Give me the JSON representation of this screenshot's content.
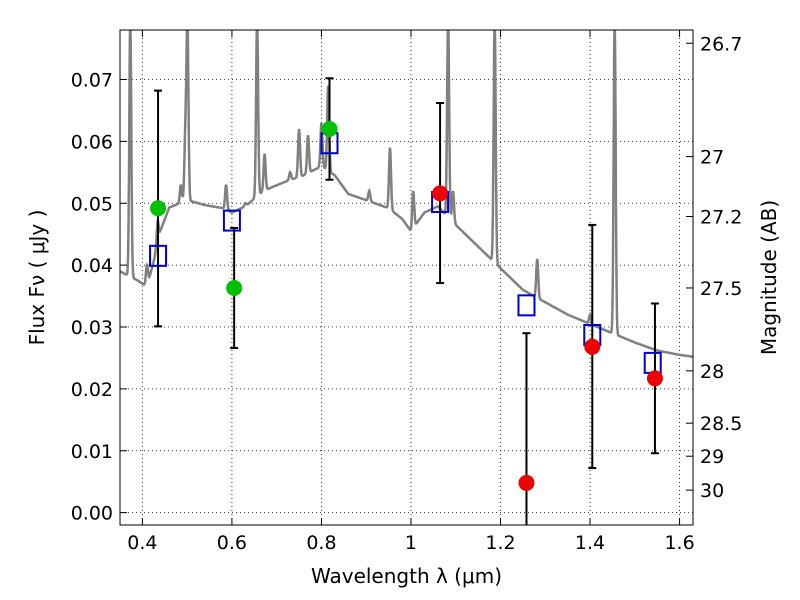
{
  "chart_data": {
    "type": "scatter",
    "xlabel": "Wavelength  λ (μm)",
    "ylabel": "Flux  Fν  ( μJy )",
    "y2label": "Magnitude (AB)",
    "xlim": [
      0.35,
      1.63
    ],
    "ylim": [
      -0.002,
      0.078
    ],
    "grid": true,
    "grid_style": "dotted",
    "x_ticks": [
      0.4,
      0.6,
      0.8,
      1.0,
      1.2,
      1.4,
      1.6
    ],
    "x_tick_labels": [
      "0.4",
      "0.6",
      "0.8",
      "1",
      "1.2",
      "1.4",
      "1.6"
    ],
    "y_ticks": [
      0.0,
      0.01,
      0.02,
      0.03,
      0.04,
      0.05,
      0.06,
      0.07
    ],
    "y_tick_labels": [
      "0.00",
      "0.01",
      "0.02",
      "0.03",
      "0.04",
      "0.05",
      "0.06",
      "0.07"
    ],
    "mag_ticks": [
      "26.7",
      "27",
      "27.2",
      "27.5",
      "28",
      "28.5",
      "29",
      "30"
    ],
    "colors": {
      "spectrum": "#808080",
      "model": "#0000cc",
      "green": "#00c000",
      "red": "#ee0000",
      "errorbar": "#000000"
    },
    "spectrum": {
      "name": "",
      "continuum": [
        [
          0.35,
          0.039
        ],
        [
          0.39,
          0.0375
        ],
        [
          0.41,
          0.0365
        ],
        [
          0.425,
          0.0405
        ],
        [
          0.44,
          0.0455
        ],
        [
          0.46,
          0.0493
        ],
        [
          0.5,
          0.0505
        ],
        [
          0.54,
          0.0497
        ],
        [
          0.58,
          0.0492
        ],
        [
          0.6,
          0.0485
        ],
        [
          0.63,
          0.0495
        ],
        [
          0.67,
          0.052
        ],
        [
          0.72,
          0.0535
        ],
        [
          0.76,
          0.0545
        ],
        [
          0.8,
          0.056
        ],
        [
          0.83,
          0.0545
        ],
        [
          0.86,
          0.0515
        ],
        [
          0.9,
          0.0505
        ],
        [
          0.95,
          0.0492
        ],
        [
          0.98,
          0.0475
        ],
        [
          1.0,
          0.0455
        ],
        [
          1.03,
          0.0485
        ],
        [
          1.06,
          0.0495
        ],
        [
          1.1,
          0.0465
        ],
        [
          1.15,
          0.043
        ],
        [
          1.2,
          0.0395
        ],
        [
          1.25,
          0.036
        ],
        [
          1.3,
          0.034
        ],
        [
          1.35,
          0.032
        ],
        [
          1.4,
          0.0305
        ],
        [
          1.45,
          0.029
        ],
        [
          1.5,
          0.0275
        ],
        [
          1.55,
          0.0262
        ],
        [
          1.6,
          0.0255
        ],
        [
          1.63,
          0.0252
        ]
      ],
      "emission_lines": [
        [
          0.373,
          0.08
        ],
        [
          0.41,
          0.04
        ],
        [
          0.434,
          0.047
        ],
        [
          0.486,
          0.053
        ],
        [
          0.496,
          0.061
        ],
        [
          0.5007,
          0.079
        ],
        [
          0.587,
          0.053
        ],
        [
          0.63,
          0.05
        ],
        [
          0.6563,
          0.08
        ],
        [
          0.673,
          0.058
        ],
        [
          0.73,
          0.055
        ],
        [
          0.75,
          0.062
        ],
        [
          0.77,
          0.061
        ],
        [
          0.8,
          0.063
        ],
        [
          0.815,
          0.069
        ],
        [
          0.9069,
          0.052
        ],
        [
          0.9532,
          0.059
        ],
        [
          1.005,
          0.052
        ],
        [
          1.083,
          0.08
        ],
        [
          1.094,
          0.052
        ],
        [
          1.187,
          0.08
        ],
        [
          1.282,
          0.041
        ],
        [
          1.4,
          0.032
        ],
        [
          1.455,
          0.08
        ]
      ]
    },
    "model_points": {
      "name": "",
      "points": [
        [
          0.435,
          0.0415
        ],
        [
          0.6,
          0.0472
        ],
        [
          0.818,
          0.0597
        ],
        [
          1.065,
          0.0502
        ],
        [
          1.258,
          0.0335
        ],
        [
          1.405,
          0.0287
        ],
        [
          1.54,
          0.0242
        ]
      ]
    },
    "observed_green": {
      "name": "",
      "points": [
        {
          "x": 0.435,
          "y": 0.0492,
          "ylo": 0.0301,
          "yhi": 0.0682
        },
        {
          "x": 0.605,
          "y": 0.0363,
          "ylo": 0.0266,
          "yhi": 0.046
        },
        {
          "x": 0.818,
          "y": 0.062,
          "ylo": 0.0538,
          "yhi": 0.0702
        }
      ]
    },
    "observed_red": {
      "name": "",
      "points": [
        {
          "x": 1.065,
          "y": 0.0516,
          "ylo": 0.0371,
          "yhi": 0.0662
        },
        {
          "x": 1.258,
          "y": 0.0048,
          "ylo": -0.002,
          "yhi": 0.029
        },
        {
          "x": 1.405,
          "y": 0.0268,
          "ylo": 0.0072,
          "yhi": 0.0465
        },
        {
          "x": 1.545,
          "y": 0.0217,
          "ylo": 0.0096,
          "yhi": 0.0338
        }
      ]
    }
  }
}
